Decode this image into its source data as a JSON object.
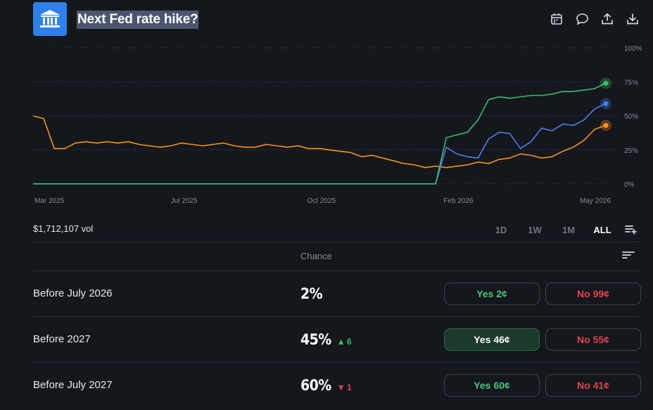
{
  "header": {
    "title": "Next Fed rate hike?",
    "logo_icon": "bank-icon",
    "icons": [
      "calendar-icon",
      "comment-icon",
      "share-icon",
      "download-icon"
    ]
  },
  "chart_data": {
    "type": "line",
    "y_ticks": [
      "100%",
      "75%",
      "50%",
      "25%",
      "0%"
    ],
    "x_ticks": [
      "Mar 2025",
      "Jul 2025",
      "Oct 2025",
      "Feb 2026",
      "May 2026"
    ],
    "ylim": [
      0,
      100
    ],
    "grid": true,
    "series": [
      {
        "color": "#f7931a",
        "values": [
          50,
          48,
          26,
          26,
          30,
          31,
          30,
          31,
          30,
          31,
          29,
          28,
          27,
          28,
          30,
          29,
          28,
          29,
          30,
          28,
          27,
          27,
          29,
          28,
          27,
          28,
          26,
          26,
          25,
          24,
          23,
          20,
          21,
          19,
          17,
          15,
          14,
          12,
          13,
          12,
          13,
          14,
          16,
          15,
          18,
          19,
          22,
          21,
          19,
          20,
          24,
          27,
          32,
          40,
          43
        ]
      },
      {
        "color": "#4f7df0",
        "values": [
          0,
          0,
          0,
          0,
          0,
          0,
          0,
          0,
          0,
          0,
          0,
          0,
          0,
          0,
          0,
          0,
          0,
          0,
          0,
          0,
          0,
          0,
          0,
          0,
          0,
          0,
          0,
          0,
          0,
          0,
          0,
          0,
          0,
          0,
          0,
          0,
          0,
          0,
          0,
          27,
          22,
          20,
          19,
          33,
          38,
          37,
          26,
          31,
          41,
          39,
          44,
          43,
          47,
          55,
          59
        ]
      },
      {
        "color": "#3fb96b",
        "values": [
          0,
          0,
          0,
          0,
          0,
          0,
          0,
          0,
          0,
          0,
          0,
          0,
          0,
          0,
          0,
          0,
          0,
          0,
          0,
          0,
          0,
          0,
          0,
          0,
          0,
          0,
          0,
          0,
          0,
          0,
          0,
          0,
          0,
          0,
          0,
          0,
          0,
          0,
          0,
          34,
          36,
          38,
          47,
          62,
          64,
          63,
          64,
          65,
          65,
          66,
          68,
          68,
          69,
          70,
          74
        ]
      }
    ]
  },
  "controls": {
    "volume": "$1,712,107 vol",
    "ranges": [
      "1D",
      "1W",
      "1M",
      "ALL"
    ],
    "active_range": "ALL"
  },
  "table": {
    "chance_header": "Chance",
    "rows": [
      {
        "name": "Before July 2026",
        "chance": "2%",
        "delta": "",
        "yes": "Yes 2¢",
        "no": "No 99¢"
      },
      {
        "name": "Before 2027",
        "chance": "45%",
        "delta": "▲ 6",
        "yes": "Yes 46¢",
        "no": "No 55¢"
      },
      {
        "name": "Before July 2027",
        "chance": "60%",
        "delta": "▼ 1",
        "yes": "Yes 60¢",
        "no": "No 41¢"
      }
    ]
  }
}
